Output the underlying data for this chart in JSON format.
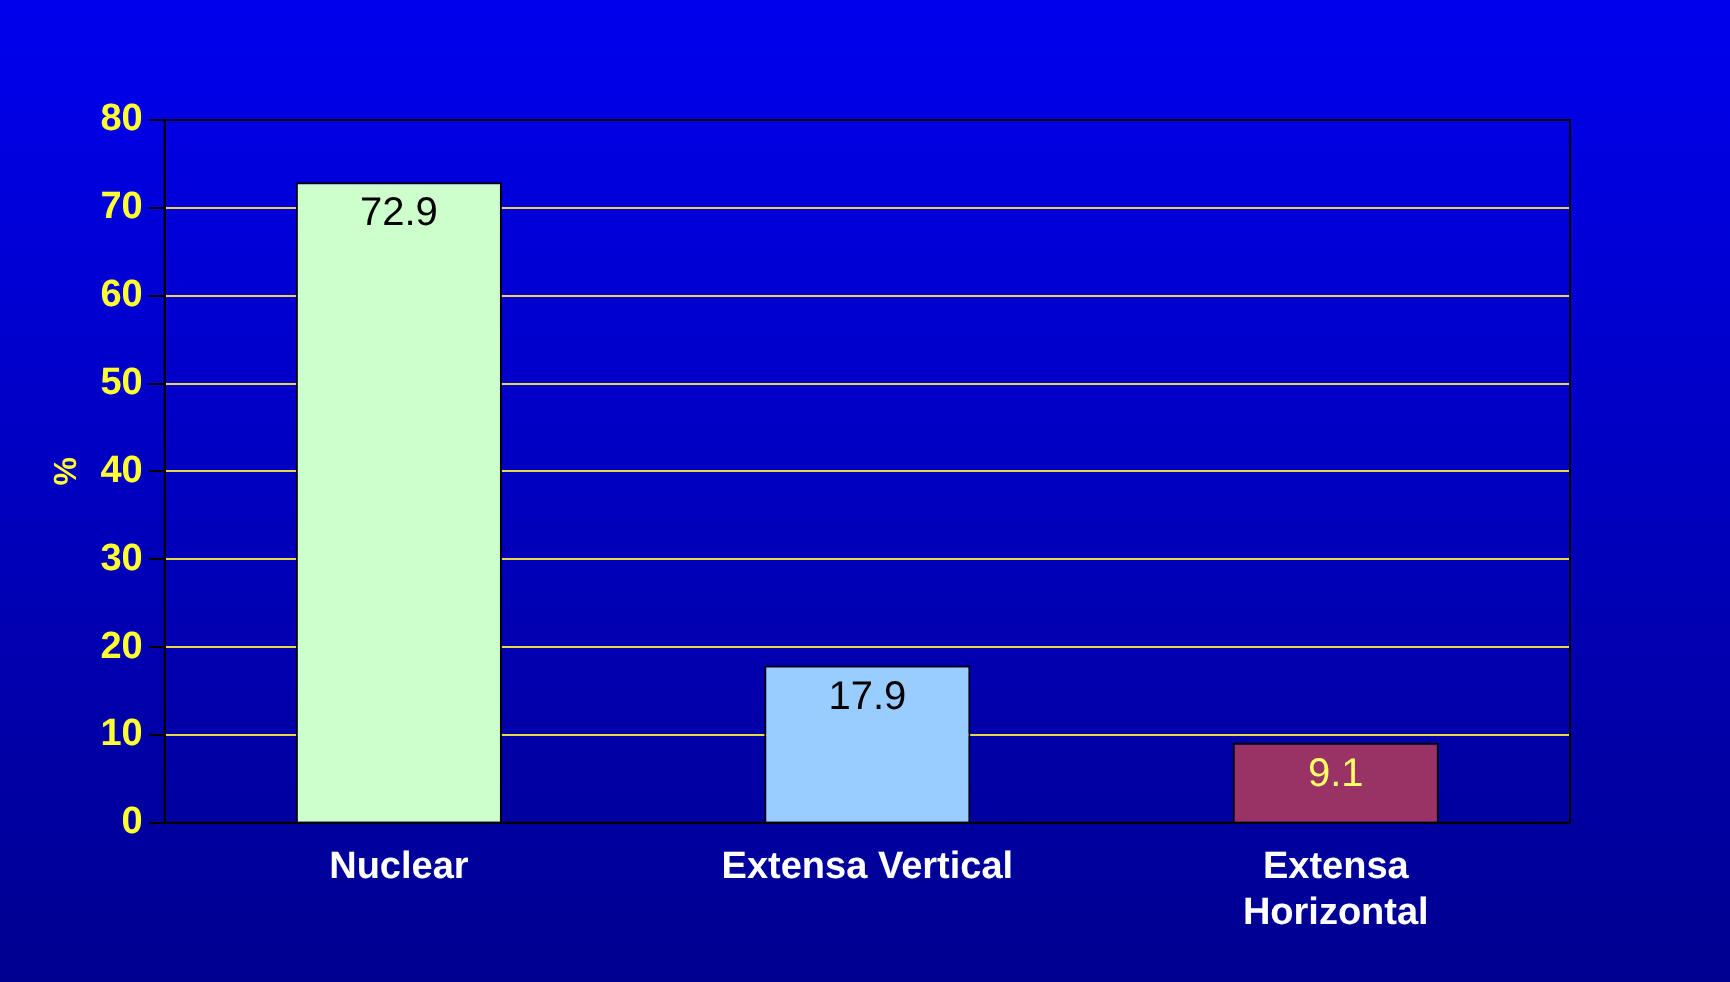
{
  "chart_data": {
    "type": "bar",
    "ylabel": "%",
    "categories": [
      "Nuclear",
      "Extensa Vertical",
      "Extensa Horizontal"
    ],
    "values": [
      72.9,
      17.9,
      9.1
    ],
    "colors": [
      "#ccffcc",
      "#99ccff",
      "#993366"
    ],
    "ylim": [
      0,
      80
    ],
    "yticks": [
      0,
      10,
      20,
      30,
      40,
      50,
      60,
      70,
      80
    ],
    "grid": "y",
    "data_labels": true,
    "legend": false
  }
}
